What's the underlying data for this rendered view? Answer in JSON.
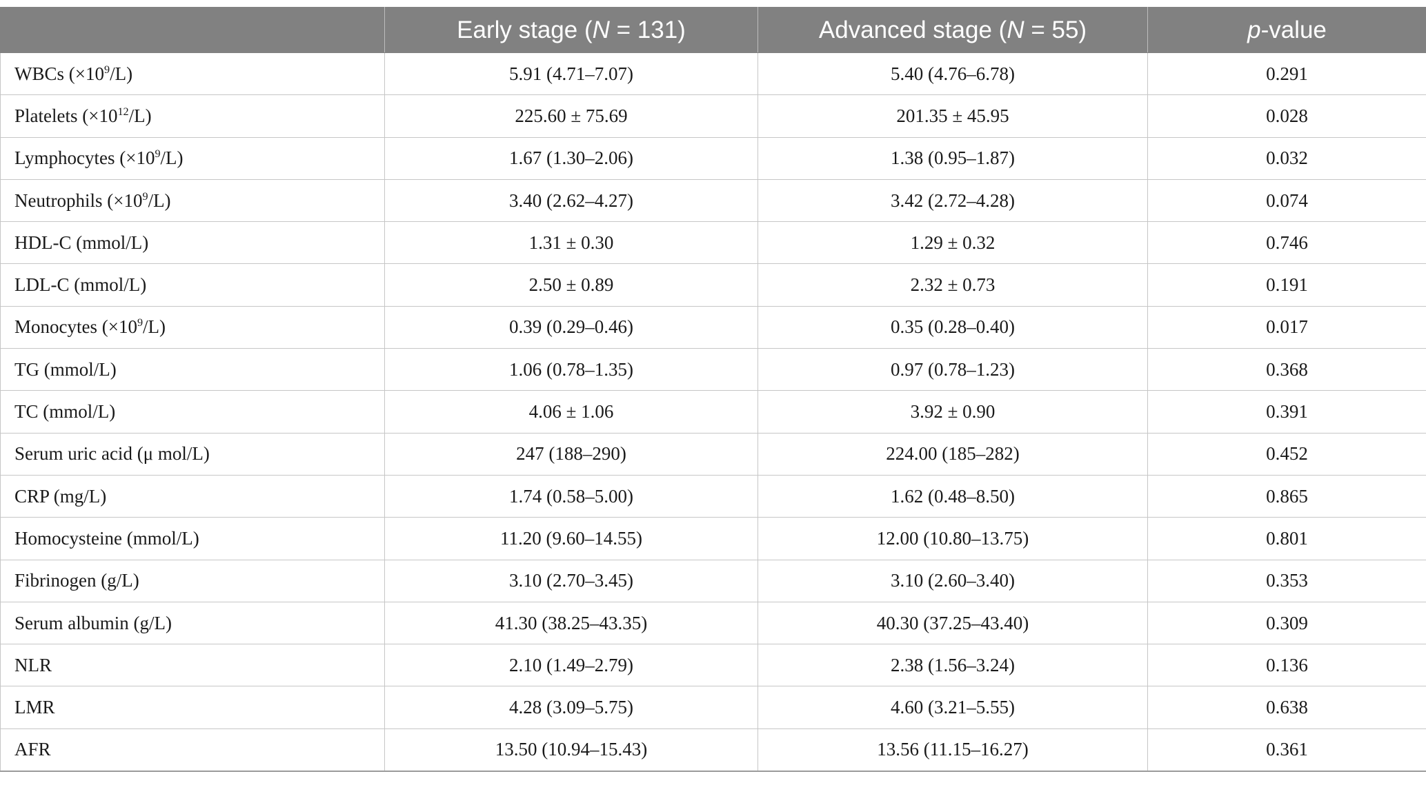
{
  "table": {
    "header": {
      "col0": "",
      "col1_pre": "Early stage (",
      "col1_n": "N",
      "col1_post": " = 131)",
      "col2_pre": "Advanced stage (",
      "col2_n": "N",
      "col2_post": " = 55)",
      "col3_p": "p",
      "col3_post": "-value"
    },
    "rows": [
      {
        "pre": "WBCs (×10",
        "sup": "9",
        "post": "/L)",
        "early": "5.91 (4.71–7.07)",
        "advanced": "5.40 (4.76–6.78)",
        "p": "0.291"
      },
      {
        "pre": "Platelets (×10",
        "sup": "12",
        "post": "/L)",
        "early": "225.60 ± 75.69",
        "advanced": "201.35 ± 45.95",
        "p": "0.028"
      },
      {
        "pre": "Lymphocytes (×10",
        "sup": "9",
        "post": "/L)",
        "early": "1.67 (1.30–2.06)",
        "advanced": "1.38 (0.95–1.87)",
        "p": "0.032"
      },
      {
        "pre": "Neutrophils (×10",
        "sup": "9",
        "post": "/L)",
        "early": "3.40 (2.62–4.27)",
        "advanced": "3.42 (2.72–4.28)",
        "p": "0.074"
      },
      {
        "pre": "HDL-C (mmol/L)",
        "sup": "",
        "post": "",
        "early": "1.31 ± 0.30",
        "advanced": "1.29 ± 0.32",
        "p": "0.746"
      },
      {
        "pre": "LDL-C (mmol/L)",
        "sup": "",
        "post": "",
        "early": "2.50 ± 0.89",
        "advanced": "2.32 ± 0.73",
        "p": "0.191"
      },
      {
        "pre": "Monocytes (×10",
        "sup": "9",
        "post": "/L)",
        "early": "0.39 (0.29–0.46)",
        "advanced": "0.35 (0.28–0.40)",
        "p": "0.017"
      },
      {
        "pre": "TG (mmol/L)",
        "sup": "",
        "post": "",
        "early": "1.06 (0.78–1.35)",
        "advanced": "0.97 (0.78–1.23)",
        "p": "0.368"
      },
      {
        "pre": "TC (mmol/L)",
        "sup": "",
        "post": "",
        "early": "4.06 ± 1.06",
        "advanced": "3.92 ± 0.90",
        "p": "0.391"
      },
      {
        "pre": "Serum uric acid (μ mol/L)",
        "sup": "",
        "post": "",
        "early": "247 (188–290)",
        "advanced": "224.00 (185–282)",
        "p": "0.452"
      },
      {
        "pre": "CRP (mg/L)",
        "sup": "",
        "post": "",
        "early": "1.74 (0.58–5.00)",
        "advanced": "1.62 (0.48–8.50)",
        "p": "0.865"
      },
      {
        "pre": "Homocysteine (mmol/L)",
        "sup": "",
        "post": "",
        "early": "11.20 (9.60–14.55)",
        "advanced": "12.00 (10.80–13.75)",
        "p": "0.801"
      },
      {
        "pre": "Fibrinogen (g/L)",
        "sup": "",
        "post": "",
        "early": "3.10 (2.70–3.45)",
        "advanced": "3.10 (2.60–3.40)",
        "p": "0.353"
      },
      {
        "pre": "Serum albumin (g/L)",
        "sup": "",
        "post": "",
        "early": "41.30 (38.25–43.35)",
        "advanced": "40.30 (37.25–43.40)",
        "p": "0.309"
      },
      {
        "pre": "NLR",
        "sup": "",
        "post": "",
        "early": "2.10 (1.49–2.79)",
        "advanced": "2.38 (1.56–3.24)",
        "p": "0.136"
      },
      {
        "pre": "LMR",
        "sup": "",
        "post": "",
        "early": "4.28 (3.09–5.75)",
        "advanced": "4.60 (3.21–5.55)",
        "p": "0.638"
      },
      {
        "pre": "AFR",
        "sup": "",
        "post": "",
        "early": "13.50 (10.94–15.43)",
        "advanced": "13.56 (11.15–16.27)",
        "p": "0.361"
      }
    ]
  },
  "colors": {
    "header_bg": "#818181",
    "header_text": "#ffffff",
    "grid": "#c6c6c6",
    "body_text": "#1a1a1a"
  }
}
